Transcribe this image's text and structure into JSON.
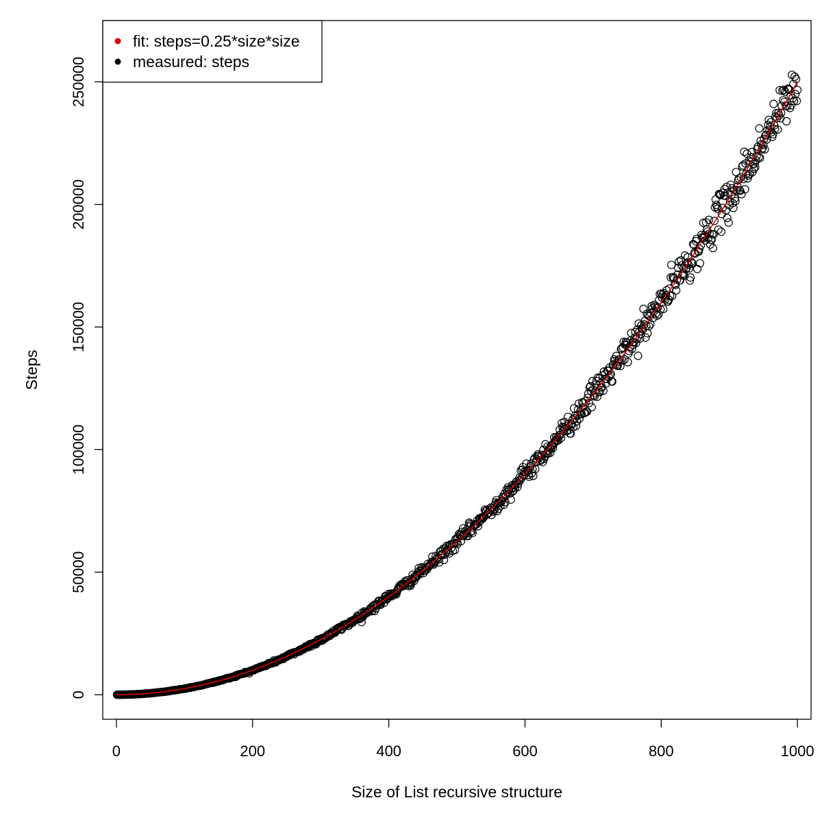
{
  "chart_data": {
    "type": "scatter",
    "xlabel": "Size of List recursive structure",
    "ylabel": "Steps",
    "xlim": [
      -20,
      1020
    ],
    "ylim": [
      -10000,
      275000
    ],
    "x_ticks": [
      0,
      200,
      400,
      600,
      800,
      1000
    ],
    "x_tick_labels": [
      "0",
      "200",
      "400",
      "600",
      "800",
      "1000"
    ],
    "y_ticks": [
      0,
      50000,
      100000,
      150000,
      200000,
      250000
    ],
    "y_tick_labels": [
      "0",
      "50000",
      "100000",
      "150000",
      "200000",
      "250000"
    ],
    "grid": false,
    "legend": {
      "placement": "top-left",
      "entries": [
        {
          "label": "fit: steps=0.25*size*size",
          "color": "#dd0000"
        },
        {
          "label": "measured: steps",
          "color": "#000000"
        }
      ]
    },
    "series": [
      {
        "name": "measured: steps",
        "kind": "points",
        "marker": "open-circle",
        "color": "#000000",
        "x_range": [
          1,
          1000
        ],
        "x_step": 1,
        "formula": "0.25*x*x",
        "noise_relative_sd": 0.02
      },
      {
        "name": "fit: steps=0.25*size*size",
        "kind": "line",
        "color": "#dd0000",
        "x_range": [
          0,
          1000
        ],
        "formula": "0.25*x*x"
      }
    ]
  }
}
